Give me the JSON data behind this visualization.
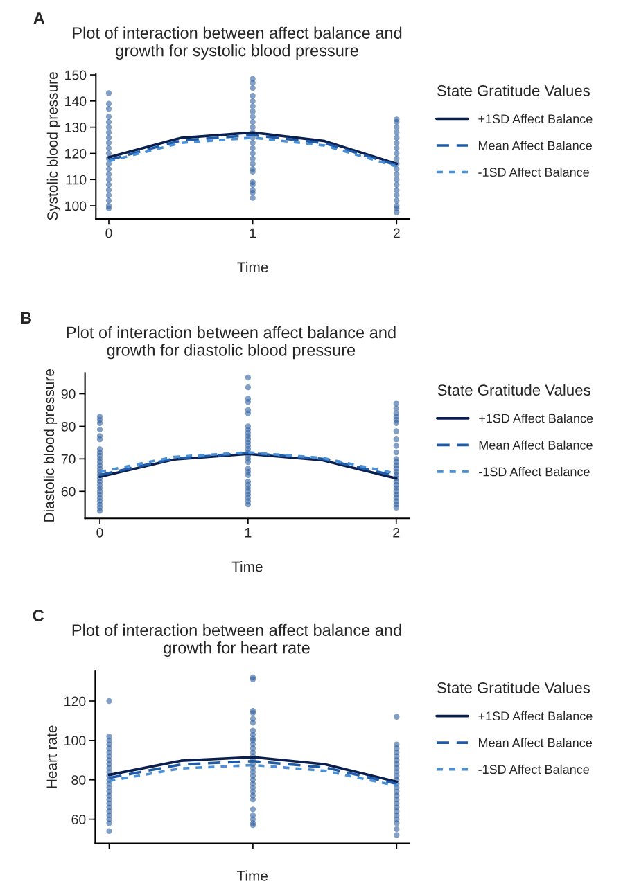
{
  "chart_data": [
    {
      "type": "line",
      "title": "Plot of interaction between affect balance and\ngrowth for systolic blood pressure",
      "xlabel": "Time",
      "ylabel": "Systolic blood pressure",
      "legend_title": "State Gratitude Values",
      "annotations": [
        "A"
      ],
      "xlim": [
        -0.09,
        2.09
      ],
      "xticks": [
        0,
        1,
        2
      ],
      "ylim": [
        95,
        150.5
      ],
      "yticks": [
        100,
        110,
        120,
        130,
        140,
        150
      ],
      "grid": false,
      "legend": "right",
      "series": [
        {
          "type": "scatter",
          "color": "#2e5f9e",
          "marker": "circle",
          "x": [
            0,
            0,
            0,
            0,
            0,
            0,
            0,
            0,
            0,
            0,
            0,
            0,
            0,
            0,
            0,
            0,
            0,
            0,
            0,
            0,
            0,
            0,
            1,
            1,
            1,
            1,
            1,
            1,
            1,
            1,
            1,
            1,
            1,
            1,
            1,
            1,
            1,
            1,
            1,
            1,
            1,
            1,
            1,
            1,
            1,
            1,
            2,
            2,
            2,
            2,
            2,
            2,
            2,
            2,
            2,
            2,
            2,
            2,
            2,
            2,
            2,
            2,
            2,
            2,
            2,
            2
          ],
          "values": [
            143,
            139,
            137,
            134,
            132,
            130,
            128,
            126,
            124,
            122,
            120,
            118,
            116,
            114,
            112,
            110,
            108,
            106,
            104,
            102,
            100,
            99,
            148.5,
            147,
            145,
            142,
            140,
            138,
            136,
            134,
            132,
            130,
            128,
            126,
            124,
            122,
            120,
            118,
            116,
            114,
            113,
            109,
            108,
            106,
            105,
            103,
            133,
            132,
            130,
            128,
            126,
            124,
            122,
            120,
            118,
            116,
            114,
            112,
            110,
            108,
            106,
            104,
            102,
            100,
            99,
            97.5
          ]
        },
        {
          "type": "line",
          "name": "+1SD Affect Balance",
          "color": "#0b1f4f",
          "line_style": "solid",
          "x": [
            0,
            0.5,
            1,
            1.5,
            2
          ],
          "values": [
            118.5,
            125.9,
            128,
            124.7,
            116
          ]
        },
        {
          "type": "line",
          "name": "Mean Affect Balance",
          "color": "#1f5aa6",
          "line_style": "dashed",
          "x": [
            0,
            0.5,
            1,
            1.5,
            2
          ],
          "values": [
            117.5,
            124.9,
            127,
            123.9,
            115.5
          ]
        },
        {
          "type": "line",
          "name": "-1SD Affect Balance",
          "color": "#4a90d9",
          "line_style": "dotted",
          "x": [
            0,
            0.5,
            1,
            1.5,
            2
          ],
          "values": [
            117,
            124,
            126,
            123,
            115
          ]
        }
      ]
    },
    {
      "type": "line",
      "title": "Plot of interaction between affect balance and\ngrowth for diastolic blood pressure",
      "xlabel": "Time",
      "ylabel": "Diastolic blood pressure",
      "legend_title": "State Gratitude Values",
      "annotations": [
        "B"
      ],
      "xlim": [
        -0.1,
        2.09
      ],
      "xticks": [
        0,
        1,
        2
      ],
      "ylim": [
        51.7,
        96.4
      ],
      "yticks": [
        60,
        70,
        80,
        90
      ],
      "grid": false,
      "legend": "right",
      "series": [
        {
          "type": "scatter",
          "color": "#2e5f9e",
          "marker": "circle",
          "x": [
            0,
            0,
            0,
            0,
            0,
            0,
            0,
            0,
            0,
            0,
            0,
            0,
            0,
            0,
            0,
            0,
            0,
            0,
            0,
            0,
            0,
            0,
            0,
            0,
            0,
            0,
            1,
            1,
            1,
            1,
            1,
            1,
            1,
            1,
            1,
            1,
            1,
            1,
            1,
            1,
            1,
            1,
            1,
            1,
            1,
            1,
            1,
            1,
            1,
            1,
            1,
            1,
            1,
            1,
            1,
            2,
            2,
            2,
            2,
            2,
            2,
            2,
            2,
            2,
            2,
            2,
            2,
            2,
            2,
            2,
            2,
            2,
            2,
            2,
            2,
            2,
            2,
            2,
            2,
            2,
            2
          ],
          "values": [
            83,
            82,
            81,
            79,
            77,
            76,
            73,
            72,
            71,
            70,
            69,
            68,
            67,
            66,
            65,
            64,
            63,
            62,
            61,
            60,
            59,
            58,
            57,
            56,
            55,
            54,
            95,
            92,
            88.5,
            87.5,
            85,
            84,
            80,
            79,
            78,
            77,
            76,
            75,
            74,
            73,
            72,
            71,
            70,
            69,
            67,
            66,
            65,
            63,
            62,
            61,
            60,
            59,
            58,
            57,
            56,
            87,
            85.5,
            84,
            83,
            82,
            81,
            78.5,
            76,
            74,
            72,
            70,
            69,
            68,
            67,
            66,
            65,
            64,
            63,
            62,
            61,
            60,
            59,
            58,
            57,
            56,
            55
          ]
        },
        {
          "type": "line",
          "name": "+1SD Affect Balance",
          "color": "#0b1f4f",
          "line_style": "solid",
          "x": [
            0,
            0.5,
            1,
            1.5,
            2
          ],
          "values": [
            64.5,
            69.8,
            71.5,
            69.6,
            64
          ]
        },
        {
          "type": "line",
          "name": "Mean Affect Balance",
          "color": "#1f5aa6",
          "line_style": "dashed",
          "x": [
            0,
            0.5,
            1,
            1.5,
            2
          ],
          "values": [
            65,
            70.1,
            71.8,
            70.0,
            64.7
          ]
        },
        {
          "type": "line",
          "name": "-1SD Affect Balance",
          "color": "#4a90d9",
          "line_style": "dotted",
          "x": [
            0,
            0.5,
            1,
            1.5,
            2
          ],
          "values": [
            66,
            70.6,
            72,
            70.3,
            65.5
          ]
        }
      ]
    },
    {
      "type": "line",
      "title": "Plot of interaction between affect balance and\ngrowth for heart rate",
      "xlabel": "Time",
      "ylabel": "Heart rate",
      "legend_title": "State Gratitude Values",
      "annotations": [
        "C"
      ],
      "xlim": [
        -0.097,
        2.09
      ],
      "xticks": [
        0,
        1,
        2
      ],
      "tick_labels": "y",
      "ylim": [
        47.7,
        135.4
      ],
      "yticks": [
        60,
        80,
        100,
        120
      ],
      "grid": false,
      "legend": "right",
      "series": [
        {
          "type": "scatter",
          "color": "#2e5f9e",
          "marker": "circle",
          "x": [
            0,
            0,
            0,
            0,
            0,
            0,
            0,
            0,
            0,
            0,
            0,
            0,
            0,
            0,
            0,
            0,
            0,
            0,
            0,
            0,
            0,
            0,
            0,
            0,
            0,
            1,
            1,
            1,
            1,
            1,
            1,
            1,
            1,
            1,
            1,
            1,
            1,
            1,
            1,
            1,
            1,
            1,
            1,
            1,
            1,
            1,
            1,
            1,
            1,
            1,
            1,
            1,
            1,
            1,
            1,
            2,
            2,
            2,
            2,
            2,
            2,
            2,
            2,
            2,
            2,
            2,
            2,
            2,
            2,
            2,
            2,
            2,
            2,
            2,
            2,
            2,
            2,
            2,
            2
          ],
          "values": [
            120,
            102,
            100,
            98,
            96,
            94,
            92,
            90,
            88,
            86,
            84,
            82,
            80,
            78,
            76,
            74,
            72,
            70,
            68,
            66,
            64,
            62,
            60,
            58,
            54,
            131,
            132,
            115,
            114,
            111,
            109,
            105,
            103,
            101,
            100,
            98,
            96,
            94,
            92,
            90,
            88,
            86,
            84,
            82,
            80,
            78,
            76,
            74,
            72,
            70,
            65,
            62,
            60,
            58,
            57,
            112,
            98,
            96,
            94,
            92,
            90,
            88,
            86,
            84,
            82,
            80,
            78,
            76,
            74,
            72,
            70,
            68,
            66,
            64,
            62,
            60,
            58,
            55,
            52
          ]
        },
        {
          "type": "line",
          "name": "+1SD Affect Balance",
          "color": "#0b1f4f",
          "line_style": "solid",
          "x": [
            0,
            0.5,
            1,
            1.5,
            2
          ],
          "values": [
            82.5,
            89.7,
            91.5,
            87.9,
            79
          ]
        },
        {
          "type": "line",
          "name": "Mean Affect Balance",
          "color": "#1f5aa6",
          "line_style": "dashed",
          "x": [
            0,
            0.5,
            1,
            1.5,
            2
          ],
          "values": [
            81,
            87.8,
            89.5,
            86.3,
            78
          ]
        },
        {
          "type": "line",
          "name": "-1SD Affect Balance",
          "color": "#4a90d9",
          "line_style": "dotted",
          "x": [
            0,
            0.5,
            1,
            1.5,
            2
          ],
          "values": [
            79.5,
            85.8,
            87.5,
            84.6,
            77
          ]
        }
      ]
    }
  ]
}
